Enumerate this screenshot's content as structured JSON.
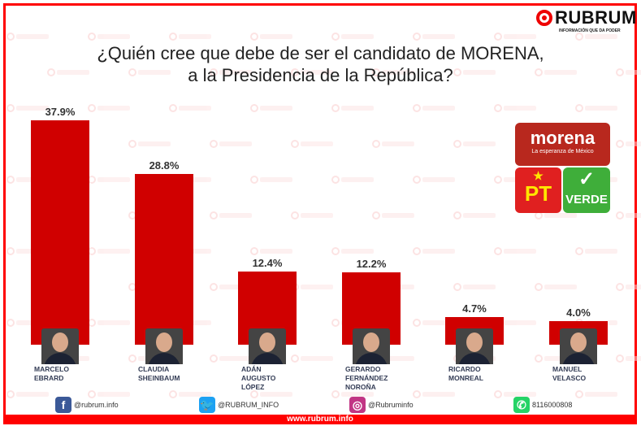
{
  "brand": {
    "name": "RUBRUM",
    "tagline": "INFORMACIÓN QUE DA PODER",
    "website": "www.rubrum.info"
  },
  "chart_data": {
    "type": "bar",
    "title": "¿Quién cree que debe de ser el candidato de MORENA,\na la Presidencia de la República?",
    "categories": [
      "MARCELO\nEBRARD",
      "CLAUDIA\nSHEINBAUM",
      "ADÁN AUGUSTO\nLÓPEZ",
      "GERARDO\nFERNÁNDEZ NOROÑA",
      "RICARDO\nMONREAL",
      "MANUEL\nVELASCO"
    ],
    "values": [
      37.9,
      28.8,
      12.4,
      12.2,
      4.7,
      4.0
    ],
    "labels": [
      "37.9%",
      "28.8%",
      "12.4%",
      "12.2%",
      "4.7%",
      "4.0%"
    ],
    "ylim": [
      0,
      40
    ],
    "color": "#d00000",
    "grid": false
  },
  "parties": {
    "morena": "morena",
    "morena_tag": "La esperanza de México",
    "pt": "PT",
    "verde": "VERDE"
  },
  "social": [
    {
      "icon": "facebook-icon",
      "text": "@rubrum.info",
      "color": "#3b5998",
      "glyph": "f"
    },
    {
      "icon": "twitter-icon",
      "text": "@RUBRUM_INFO",
      "color": "#1da1f2",
      "glyph": "🐦"
    },
    {
      "icon": "instagram-icon",
      "text": "@Rubruminfo",
      "color": "#c13584",
      "glyph": "◎"
    },
    {
      "icon": "whatsapp-icon",
      "text": "8116000808",
      "color": "#25d366",
      "glyph": "✆"
    }
  ]
}
